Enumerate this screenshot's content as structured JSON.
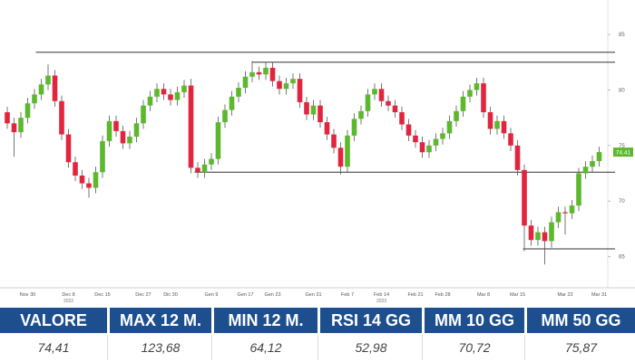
{
  "chart_data": {
    "type": "candlestick",
    "categories": [
      null,
      null,
      null,
      "Nov 30",
      null,
      null,
      null,
      null,
      null,
      "Dec 8",
      null,
      null,
      null,
      null,
      "Dec 15",
      null,
      null,
      null,
      null,
      null,
      "Dec 27",
      null,
      null,
      null,
      "Dic 30",
      null,
      null,
      null,
      null,
      null,
      "Gen 9",
      null,
      null,
      null,
      null,
      "Gen 17",
      null,
      null,
      null,
      "Gen 23",
      null,
      null,
      null,
      null,
      null,
      "Gen 31",
      null,
      null,
      null,
      null,
      "Feb 7",
      null,
      null,
      null,
      null,
      "Feb 14",
      null,
      null,
      null,
      null,
      "Feb 21",
      null,
      null,
      null,
      "Feb 28",
      null,
      null,
      null,
      null,
      null,
      "Mar 8",
      null,
      null,
      null,
      null,
      "Mar 15",
      null,
      null,
      null,
      null,
      null,
      null,
      "Mar 23",
      null,
      null,
      null,
      null,
      "Mar 31"
    ],
    "years": [
      "2022",
      "2023"
    ],
    "open": [
      78.0,
      77.0,
      76.2,
      77.5,
      78.8,
      79.6,
      80.5,
      81.3,
      79.0,
      76.0,
      73.5,
      72.3,
      71.6,
      71.2,
      72.6,
      75.4,
      77.2,
      76.3,
      75.2,
      75.8,
      77.0,
      78.6,
      79.4,
      80.1,
      79.6,
      79.1,
      79.8,
      80.4,
      73.0,
      72.6,
      73.3,
      73.8,
      77.1,
      78.2,
      79.4,
      80.2,
      81.2,
      81.6,
      81.4,
      82.0,
      80.8,
      80.1,
      80.6,
      81.0,
      78.9,
      77.8,
      78.6,
      77.1,
      76.0,
      74.8,
      73.1,
      75.9,
      77.4,
      78.1,
      79.6,
      80.1,
      79.0,
      78.6,
      78.0,
      76.9,
      75.9,
      75.3,
      74.4,
      75.0,
      75.6,
      76.1,
      77.2,
      78.1,
      79.4,
      80.0,
      80.6,
      78.0,
      76.5,
      77.2,
      76.1,
      75.0,
      72.8,
      67.8,
      66.5,
      67.2,
      66.4,
      68.1,
      69.0,
      68.9,
      69.6,
      72.5,
      73.1,
      73.6
    ],
    "high": [
      78.5,
      77.5,
      78.0,
      79.3,
      80.1,
      81.0,
      82.3,
      81.8,
      79.5,
      76.5,
      74.0,
      72.8,
      72.1,
      73.1,
      75.9,
      77.7,
      77.7,
      76.8,
      76.3,
      77.5,
      79.1,
      79.9,
      80.6,
      80.6,
      80.1,
      80.3,
      80.9,
      81.0,
      73.5,
      73.8,
      74.3,
      77.6,
      78.7,
      79.9,
      80.7,
      81.7,
      82.6,
      82.1,
      82.5,
      82.5,
      81.3,
      81.1,
      81.5,
      81.5,
      79.4,
      79.1,
      79.1,
      77.6,
      76.5,
      75.3,
      76.4,
      77.9,
      78.6,
      80.1,
      80.6,
      80.6,
      79.5,
      79.1,
      78.5,
      77.4,
      76.4,
      75.8,
      75.5,
      76.1,
      76.6,
      77.7,
      78.6,
      79.9,
      80.5,
      81.1,
      81.1,
      78.5,
      77.7,
      77.7,
      76.6,
      75.5,
      73.3,
      68.3,
      67.7,
      67.7,
      68.6,
      69.5,
      69.5,
      70.1,
      73.0,
      73.6,
      74.1,
      74.9
    ],
    "low": [
      76.5,
      74.0,
      75.7,
      77.0,
      78.3,
      79.1,
      80.0,
      78.5,
      75.5,
      73.0,
      71.8,
      71.1,
      70.3,
      70.7,
      72.1,
      74.9,
      75.8,
      74.7,
      74.7,
      75.3,
      76.5,
      78.1,
      78.9,
      79.1,
      78.6,
      78.6,
      79.3,
      72.5,
      72.1,
      72.1,
      72.8,
      73.3,
      76.6,
      77.7,
      78.9,
      79.7,
      80.7,
      80.9,
      80.9,
      80.3,
      79.6,
      79.6,
      80.1,
      78.4,
      77.3,
      77.3,
      76.6,
      75.5,
      74.3,
      72.4,
      72.6,
      75.4,
      76.9,
      77.6,
      79.1,
      78.5,
      78.1,
      77.5,
      76.4,
      75.4,
      74.8,
      73.9,
      73.9,
      74.5,
      75.1,
      75.6,
      76.7,
      77.6,
      78.9,
      79.5,
      77.5,
      76.0,
      76.0,
      75.6,
      74.5,
      72.3,
      65.5,
      66.0,
      66.0,
      64.3,
      65.8,
      67.6,
      67.0,
      68.4,
      69.1,
      72.0,
      72.6,
      73.1
    ],
    "close": [
      77.0,
      76.2,
      77.5,
      78.8,
      79.6,
      80.5,
      81.3,
      79.0,
      76.0,
      73.5,
      72.3,
      71.6,
      71.2,
      72.6,
      75.4,
      77.2,
      76.3,
      75.2,
      75.8,
      77.0,
      78.6,
      79.4,
      80.1,
      79.6,
      79.1,
      79.8,
      80.4,
      73.0,
      72.6,
      73.3,
      73.8,
      77.1,
      78.2,
      79.4,
      80.2,
      81.2,
      81.6,
      81.4,
      82.0,
      80.8,
      80.1,
      80.6,
      81.0,
      78.9,
      77.8,
      78.6,
      77.1,
      76.0,
      74.8,
      73.1,
      75.9,
      77.4,
      78.1,
      79.6,
      80.1,
      79.0,
      78.6,
      78.0,
      76.9,
      75.9,
      75.3,
      74.4,
      75.0,
      75.6,
      76.1,
      77.2,
      78.1,
      79.4,
      80.0,
      80.6,
      78.0,
      76.5,
      77.2,
      76.1,
      75.0,
      72.8,
      67.8,
      66.5,
      67.2,
      66.4,
      68.1,
      69.0,
      68.9,
      69.6,
      72.5,
      73.1,
      73.6,
      74.41
    ],
    "up_color": "#5cb82e",
    "down_color": "#e2253f",
    "levels": [
      83.4,
      82.5,
      72.6,
      65.7
    ],
    "ylim": [
      62.2,
      88.1
    ],
    "yticks": [
      65,
      70,
      75,
      80,
      85
    ]
  },
  "table": {
    "headers": [
      "VALORE",
      "MAX 12 M.",
      "MIN 12 M.",
      "RSI 14 GG",
      "MM 10 GG",
      "MM 50 GG"
    ],
    "values": [
      "74,41",
      "123,68",
      "64,12",
      "52,98",
      "70,72",
      "75,87"
    ]
  }
}
